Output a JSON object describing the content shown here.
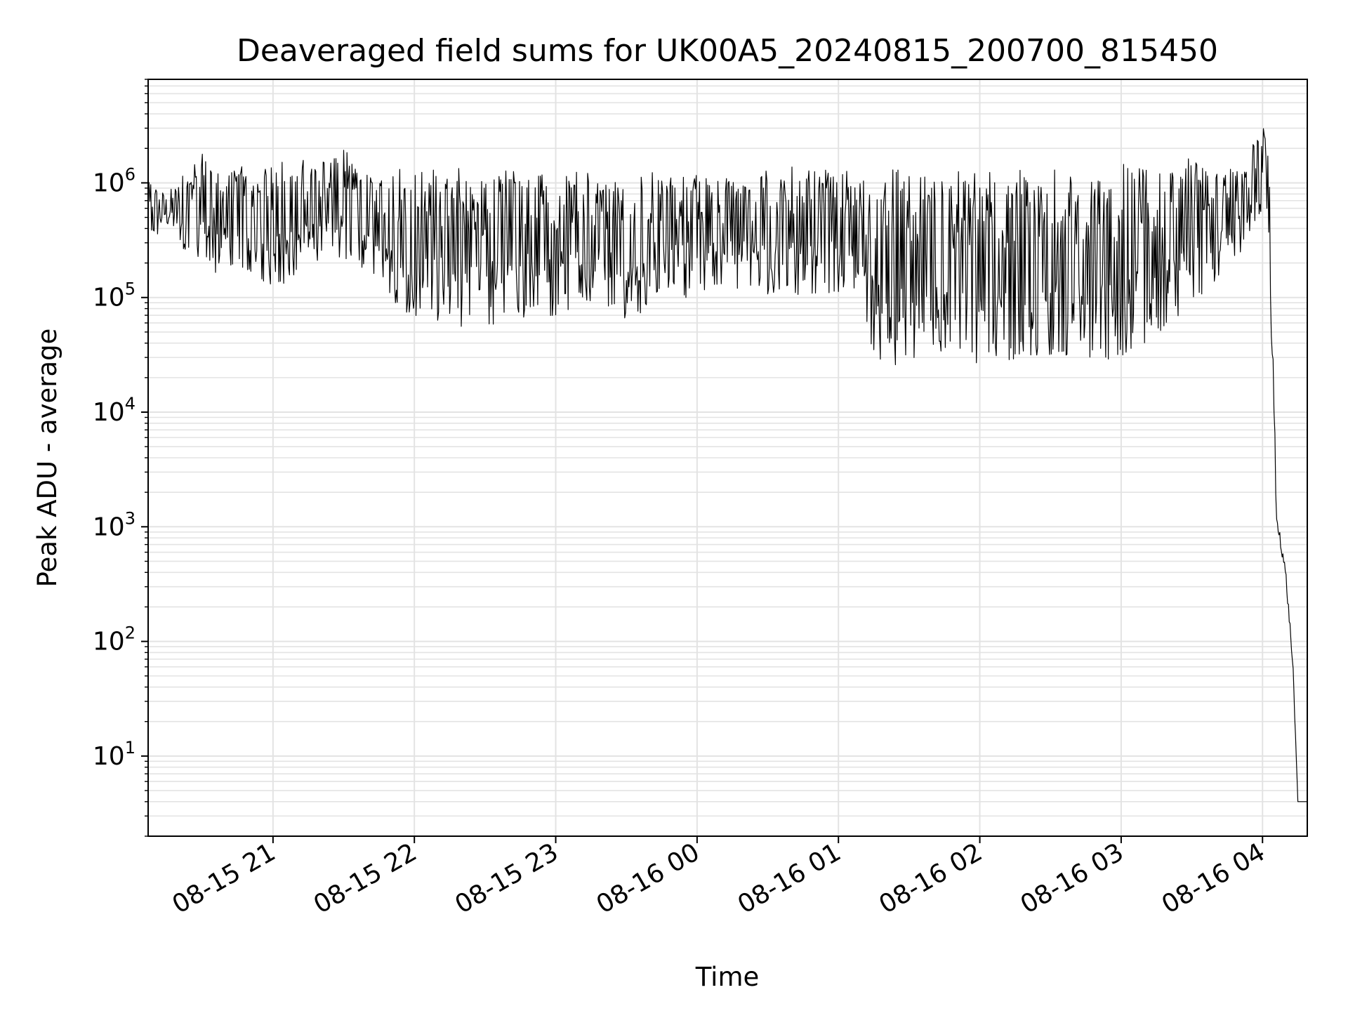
{
  "chart_data": {
    "type": "line",
    "title": "Deaveraged field sums for UK00A5_20240815_200700_815450",
    "xlabel": "Time",
    "ylabel": "Peak ADU - average",
    "yscale": "log",
    "ylim": [
      2,
      8000000
    ],
    "xlim": [
      "2024-08-15 20:07",
      "2024-08-16 04:19"
    ],
    "grid": true,
    "line_color": "#000000",
    "x_ticks": [
      {
        "value": "2024-08-15 21:00",
        "label": "08-15 21"
      },
      {
        "value": "2024-08-15 22:00",
        "label": "08-15 22"
      },
      {
        "value": "2024-08-15 23:00",
        "label": "08-15 23"
      },
      {
        "value": "2024-08-16 00:00",
        "label": "08-16 00"
      },
      {
        "value": "2024-08-16 01:00",
        "label": "08-16 01"
      },
      {
        "value": "2024-08-16 02:00",
        "label": "08-16 02"
      },
      {
        "value": "2024-08-16 03:00",
        "label": "08-16 03"
      },
      {
        "value": "2024-08-16 04:00",
        "label": "08-16 04"
      }
    ],
    "y_ticks": [
      {
        "value": 10,
        "base": "10",
        "exp": "1"
      },
      {
        "value": 100,
        "base": "10",
        "exp": "2"
      },
      {
        "value": 1000,
        "base": "10",
        "exp": "3"
      },
      {
        "value": 10000,
        "base": "10",
        "exp": "4"
      },
      {
        "value": 100000,
        "base": "10",
        "exp": "5"
      },
      {
        "value": 1000000,
        "base": "10",
        "exp": "6"
      }
    ],
    "series": [
      {
        "x": [
          "2024-08-15 20:07",
          "2024-08-15 20:15",
          "2024-08-15 20:22",
          "2024-08-15 20:30",
          "2024-08-15 20:37",
          "2024-08-15 20:45",
          "2024-08-15 20:52",
          "2024-08-15 21:00",
          "2024-08-15 21:07",
          "2024-08-15 21:15",
          "2024-08-15 21:22",
          "2024-08-15 21:30",
          "2024-08-15 21:37",
          "2024-08-15 21:45",
          "2024-08-15 21:52",
          "2024-08-15 22:00",
          "2024-08-15 22:07",
          "2024-08-15 22:15",
          "2024-08-15 22:22",
          "2024-08-15 22:30",
          "2024-08-15 22:37",
          "2024-08-15 22:45",
          "2024-08-15 22:52",
          "2024-08-15 23:00",
          "2024-08-15 23:07",
          "2024-08-15 23:15",
          "2024-08-15 23:22",
          "2024-08-15 23:30",
          "2024-08-15 23:37",
          "2024-08-15 23:45",
          "2024-08-15 23:52",
          "2024-08-16 00:00",
          "2024-08-16 00:07",
          "2024-08-16 00:15",
          "2024-08-16 00:22",
          "2024-08-16 00:30",
          "2024-08-16 00:37",
          "2024-08-16 00:45",
          "2024-08-16 00:52",
          "2024-08-16 01:00",
          "2024-08-16 01:07",
          "2024-08-16 01:15",
          "2024-08-16 01:22",
          "2024-08-16 01:30",
          "2024-08-16 01:37",
          "2024-08-16 01:45",
          "2024-08-16 01:52",
          "2024-08-16 02:00",
          "2024-08-16 02:07",
          "2024-08-16 02:15",
          "2024-08-16 02:22",
          "2024-08-16 02:30",
          "2024-08-16 02:37",
          "2024-08-16 02:45",
          "2024-08-16 02:52",
          "2024-08-16 03:00",
          "2024-08-16 03:07",
          "2024-08-16 03:15",
          "2024-08-16 03:22",
          "2024-08-16 03:30",
          "2024-08-16 03:37",
          "2024-08-16 03:45",
          "2024-08-16 03:52",
          "2024-08-16 04:00",
          "2024-08-16 04:03",
          "2024-08-16 04:06",
          "2024-08-16 04:08",
          "2024-08-16 04:10",
          "2024-08-16 04:12",
          "2024-08-16 04:13",
          "2024-08-16 04:15",
          "2024-08-16 04:19"
        ],
        "y_low": [
          250000,
          400000,
          250000,
          200000,
          150000,
          180000,
          150000,
          120000,
          130000,
          170000,
          250000,
          200000,
          170000,
          150000,
          80000,
          70000,
          60000,
          55000,
          55000,
          50000,
          60000,
          65000,
          65000,
          70000,
          80000,
          90000,
          75000,
          65000,
          75000,
          120000,
          100000,
          100000,
          110000,
          110000,
          130000,
          100000,
          100000,
          100000,
          110000,
          110000,
          120000,
          30000,
          25000,
          22000,
          22000,
          25000,
          25000,
          25000,
          25000,
          25000,
          24000,
          25000,
          25000,
          25000,
          28000,
          30000,
          35000,
          40000,
          60000,
          80000,
          120000,
          180000,
          250000,
          600000,
          150000,
          1000,
          600,
          300,
          100,
          50,
          4,
          4
        ],
        "y_high": [
          1200000,
          800000,
          1300000,
          2000000,
          1300000,
          1500000,
          1400000,
          1600000,
          1500000,
          1700000,
          1700000,
          2300000,
          1400000,
          1300000,
          1400000,
          1300000,
          1500000,
          1400000,
          1400000,
          1300000,
          1300000,
          1300000,
          1300000,
          1200000,
          1300000,
          1300000,
          1200000,
          1100000,
          1300000,
          1200000,
          1300000,
          1200000,
          1100000,
          1200000,
          1100000,
          1300000,
          1400000,
          1500000,
          1400000,
          1400000,
          1200000,
          1200000,
          1300000,
          1300000,
          1300000,
          1300000,
          1300000,
          1300000,
          1300000,
          1300000,
          1300000,
          1300000,
          1300000,
          1300000,
          1400000,
          1500000,
          1500000,
          1600000,
          1700000,
          1800000,
          1600000,
          1500000,
          1400000,
          4000000,
          1500000,
          1200,
          900,
          400,
          120,
          60,
          4,
          4
        ]
      }
    ]
  }
}
